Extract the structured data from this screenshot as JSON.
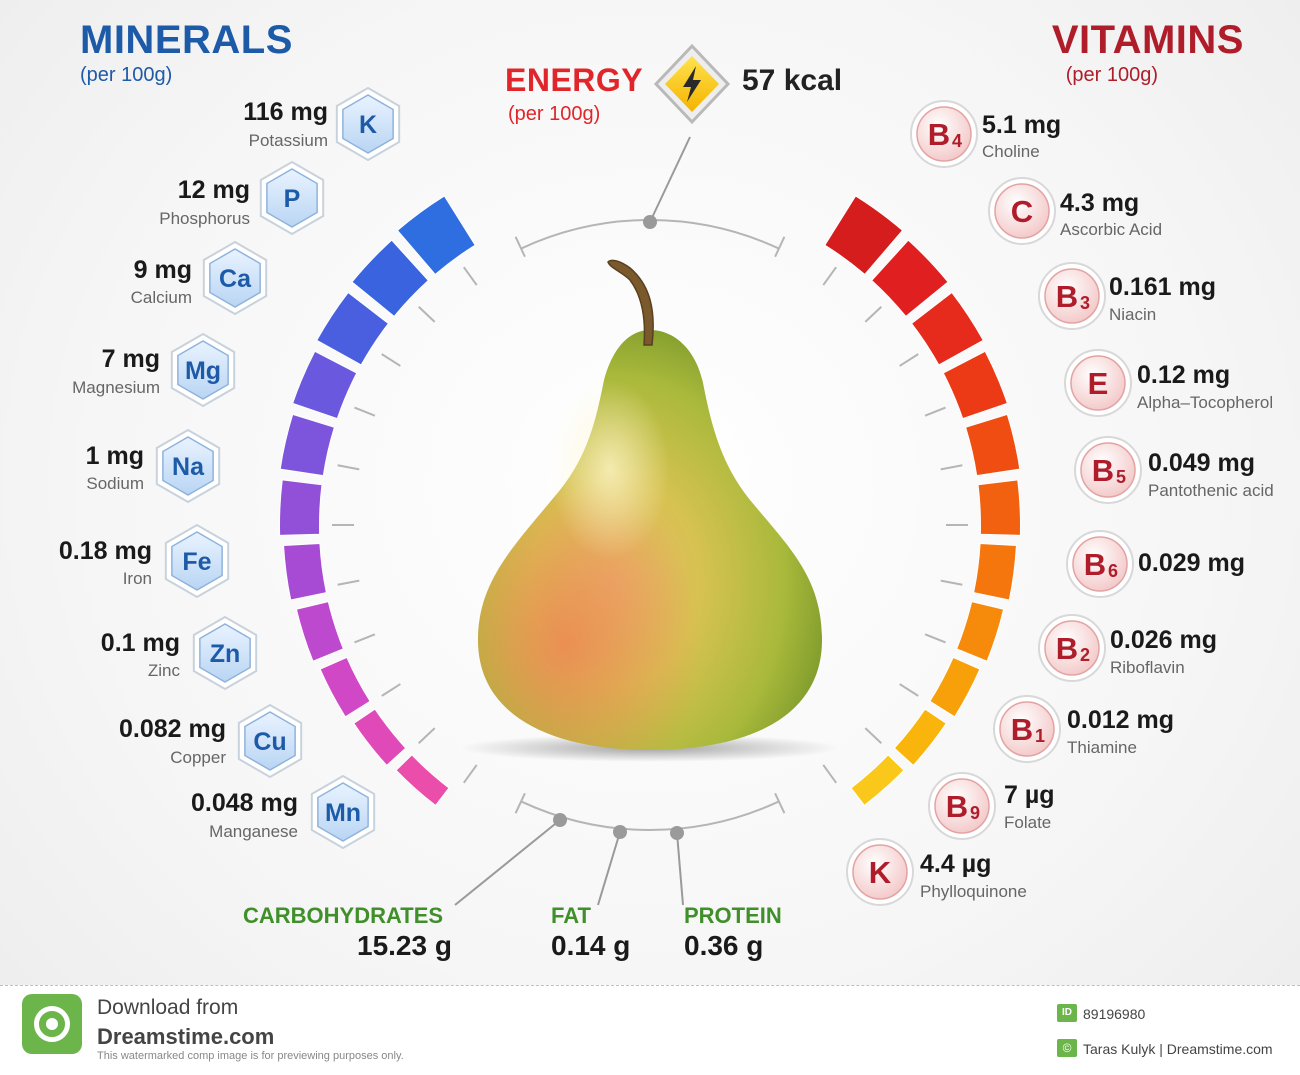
{
  "minerals": {
    "title": "MINERALS",
    "subtitle": "(per 100g)",
    "items": [
      {
        "amount": "116 mg",
        "name": "Potassium",
        "symbol": "K"
      },
      {
        "amount": "12 mg",
        "name": "Phosphorus",
        "symbol": "P"
      },
      {
        "amount": "9 mg",
        "name": "Calcium",
        "symbol": "Ca"
      },
      {
        "amount": "7 mg",
        "name": "Magnesium",
        "symbol": "Mg"
      },
      {
        "amount": "1 mg",
        "name": "Sodium",
        "symbol": "Na"
      },
      {
        "amount": "0.18 mg",
        "name": "Iron",
        "symbol": "Fe"
      },
      {
        "amount": "0.1 mg",
        "name": "Zinc",
        "symbol": "Zn"
      },
      {
        "amount": "0.082 mg",
        "name": "Copper",
        "symbol": "Cu"
      },
      {
        "amount": "0.048 mg",
        "name": "Manganese",
        "symbol": "Mn"
      }
    ]
  },
  "vitamins": {
    "title": "VITAMINS",
    "subtitle": "(per 100g)",
    "items": [
      {
        "amount": "5.1 mg",
        "name": "Choline",
        "letter": "B",
        "sub": "4"
      },
      {
        "amount": "4.3 mg",
        "name": "Ascorbic Acid",
        "letter": "C",
        "sub": ""
      },
      {
        "amount": "0.161 mg",
        "name": "Niacin",
        "letter": "B",
        "sub": "3"
      },
      {
        "amount": "0.12 mg",
        "name": "Alpha–Tocopherol",
        "letter": "E",
        "sub": ""
      },
      {
        "amount": "0.049 mg",
        "name": "Pantothenic acid",
        "letter": "B",
        "sub": "5"
      },
      {
        "amount": "0.029 mg",
        "name": "",
        "letter": "B",
        "sub": "6"
      },
      {
        "amount": "0.026 mg",
        "name": "Riboflavin",
        "letter": "B",
        "sub": "2"
      },
      {
        "amount": "0.012 mg",
        "name": "Thiamine",
        "letter": "B",
        "sub": "1"
      },
      {
        "amount": "7 µg",
        "name": "Folate",
        "letter": "B",
        "sub": "9"
      },
      {
        "amount": "4.4 µg",
        "name": "Phylloquinone",
        "letter": "K",
        "sub": ""
      }
    ]
  },
  "energy": {
    "title": "ENERGY",
    "subtitle": "(per 100g)",
    "value": "57 kcal",
    "icon": "lightning-icon"
  },
  "macros": [
    {
      "label": "CARBOHYDRATES",
      "value": "15.23 g"
    },
    {
      "label": "FAT",
      "value": "0.14 g"
    },
    {
      "label": "PROTEIN",
      "value": "0.36 g"
    }
  ],
  "footer": {
    "download": "Download from",
    "site": "Dreamstime.com",
    "note": "This watermarked comp image is for previewing purposes only.",
    "id_label": "ID",
    "id": "89196980",
    "copyright_symbol": "©",
    "author": "Taras Kulyk | Dreamstime.com"
  },
  "colors": {
    "minerals_title": "#1d5aa8",
    "vitamins_title": "#b01d2a",
    "energy_title": "#e0262b",
    "macro_label": "#3f8f2a",
    "footer_logo": "#6bb54a"
  }
}
